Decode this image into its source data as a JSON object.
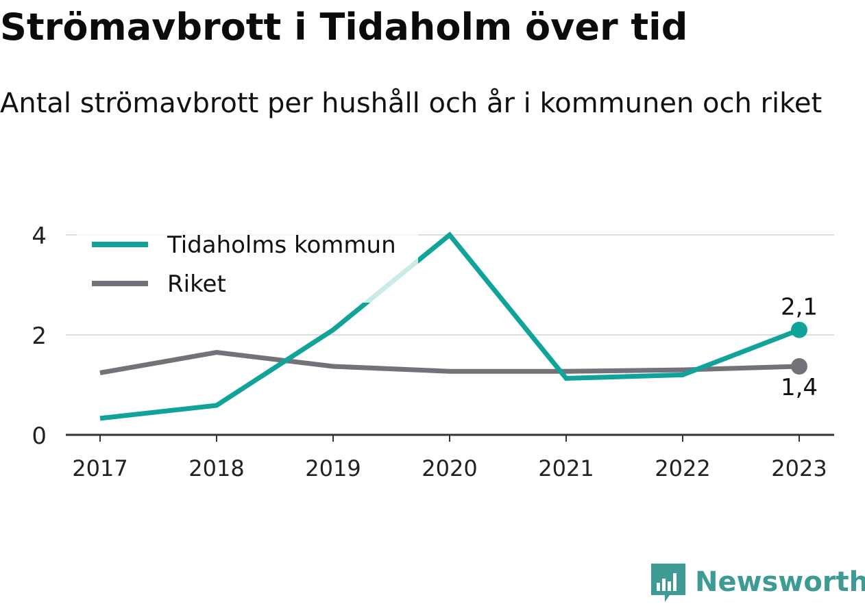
{
  "header": {
    "title": "Strömavbrott i Tidaholm över tid",
    "subtitle": "Antal strömavbrott per hushåll och år i kommunen och riket"
  },
  "brand": {
    "name": "Newsworthy",
    "icon": "newsworthy-logo-icon",
    "color": "#3d9a94"
  },
  "colors": {
    "tidaholm": "#0fa39a",
    "riket": "#737279",
    "grid": "#dddddd",
    "axis": "#333333"
  },
  "chart_data": {
    "type": "line",
    "title": "Strömavbrott i Tidaholm över tid",
    "subtitle": "Antal strömavbrott per hushåll och år i kommunen och riket",
    "xlabel": "",
    "ylabel": "",
    "categories": [
      "2017",
      "2018",
      "2019",
      "2020",
      "2021",
      "2022",
      "2023"
    ],
    "ylim": [
      0,
      4
    ],
    "yticks": [
      "0",
      "2",
      "4"
    ],
    "grid": true,
    "legend_position": "top-left",
    "series": [
      {
        "name": "Tidaholms kommun",
        "color": "#0fa39a",
        "values": [
          0.33,
          0.59,
          2.1,
          4.0,
          1.13,
          1.2,
          2.1
        ]
      },
      {
        "name": "Riket",
        "color": "#737279",
        "values": [
          1.24,
          1.65,
          1.37,
          1.27,
          1.27,
          1.3,
          1.37
        ]
      }
    ],
    "end_labels": [
      "2,1",
      "1,4"
    ]
  }
}
